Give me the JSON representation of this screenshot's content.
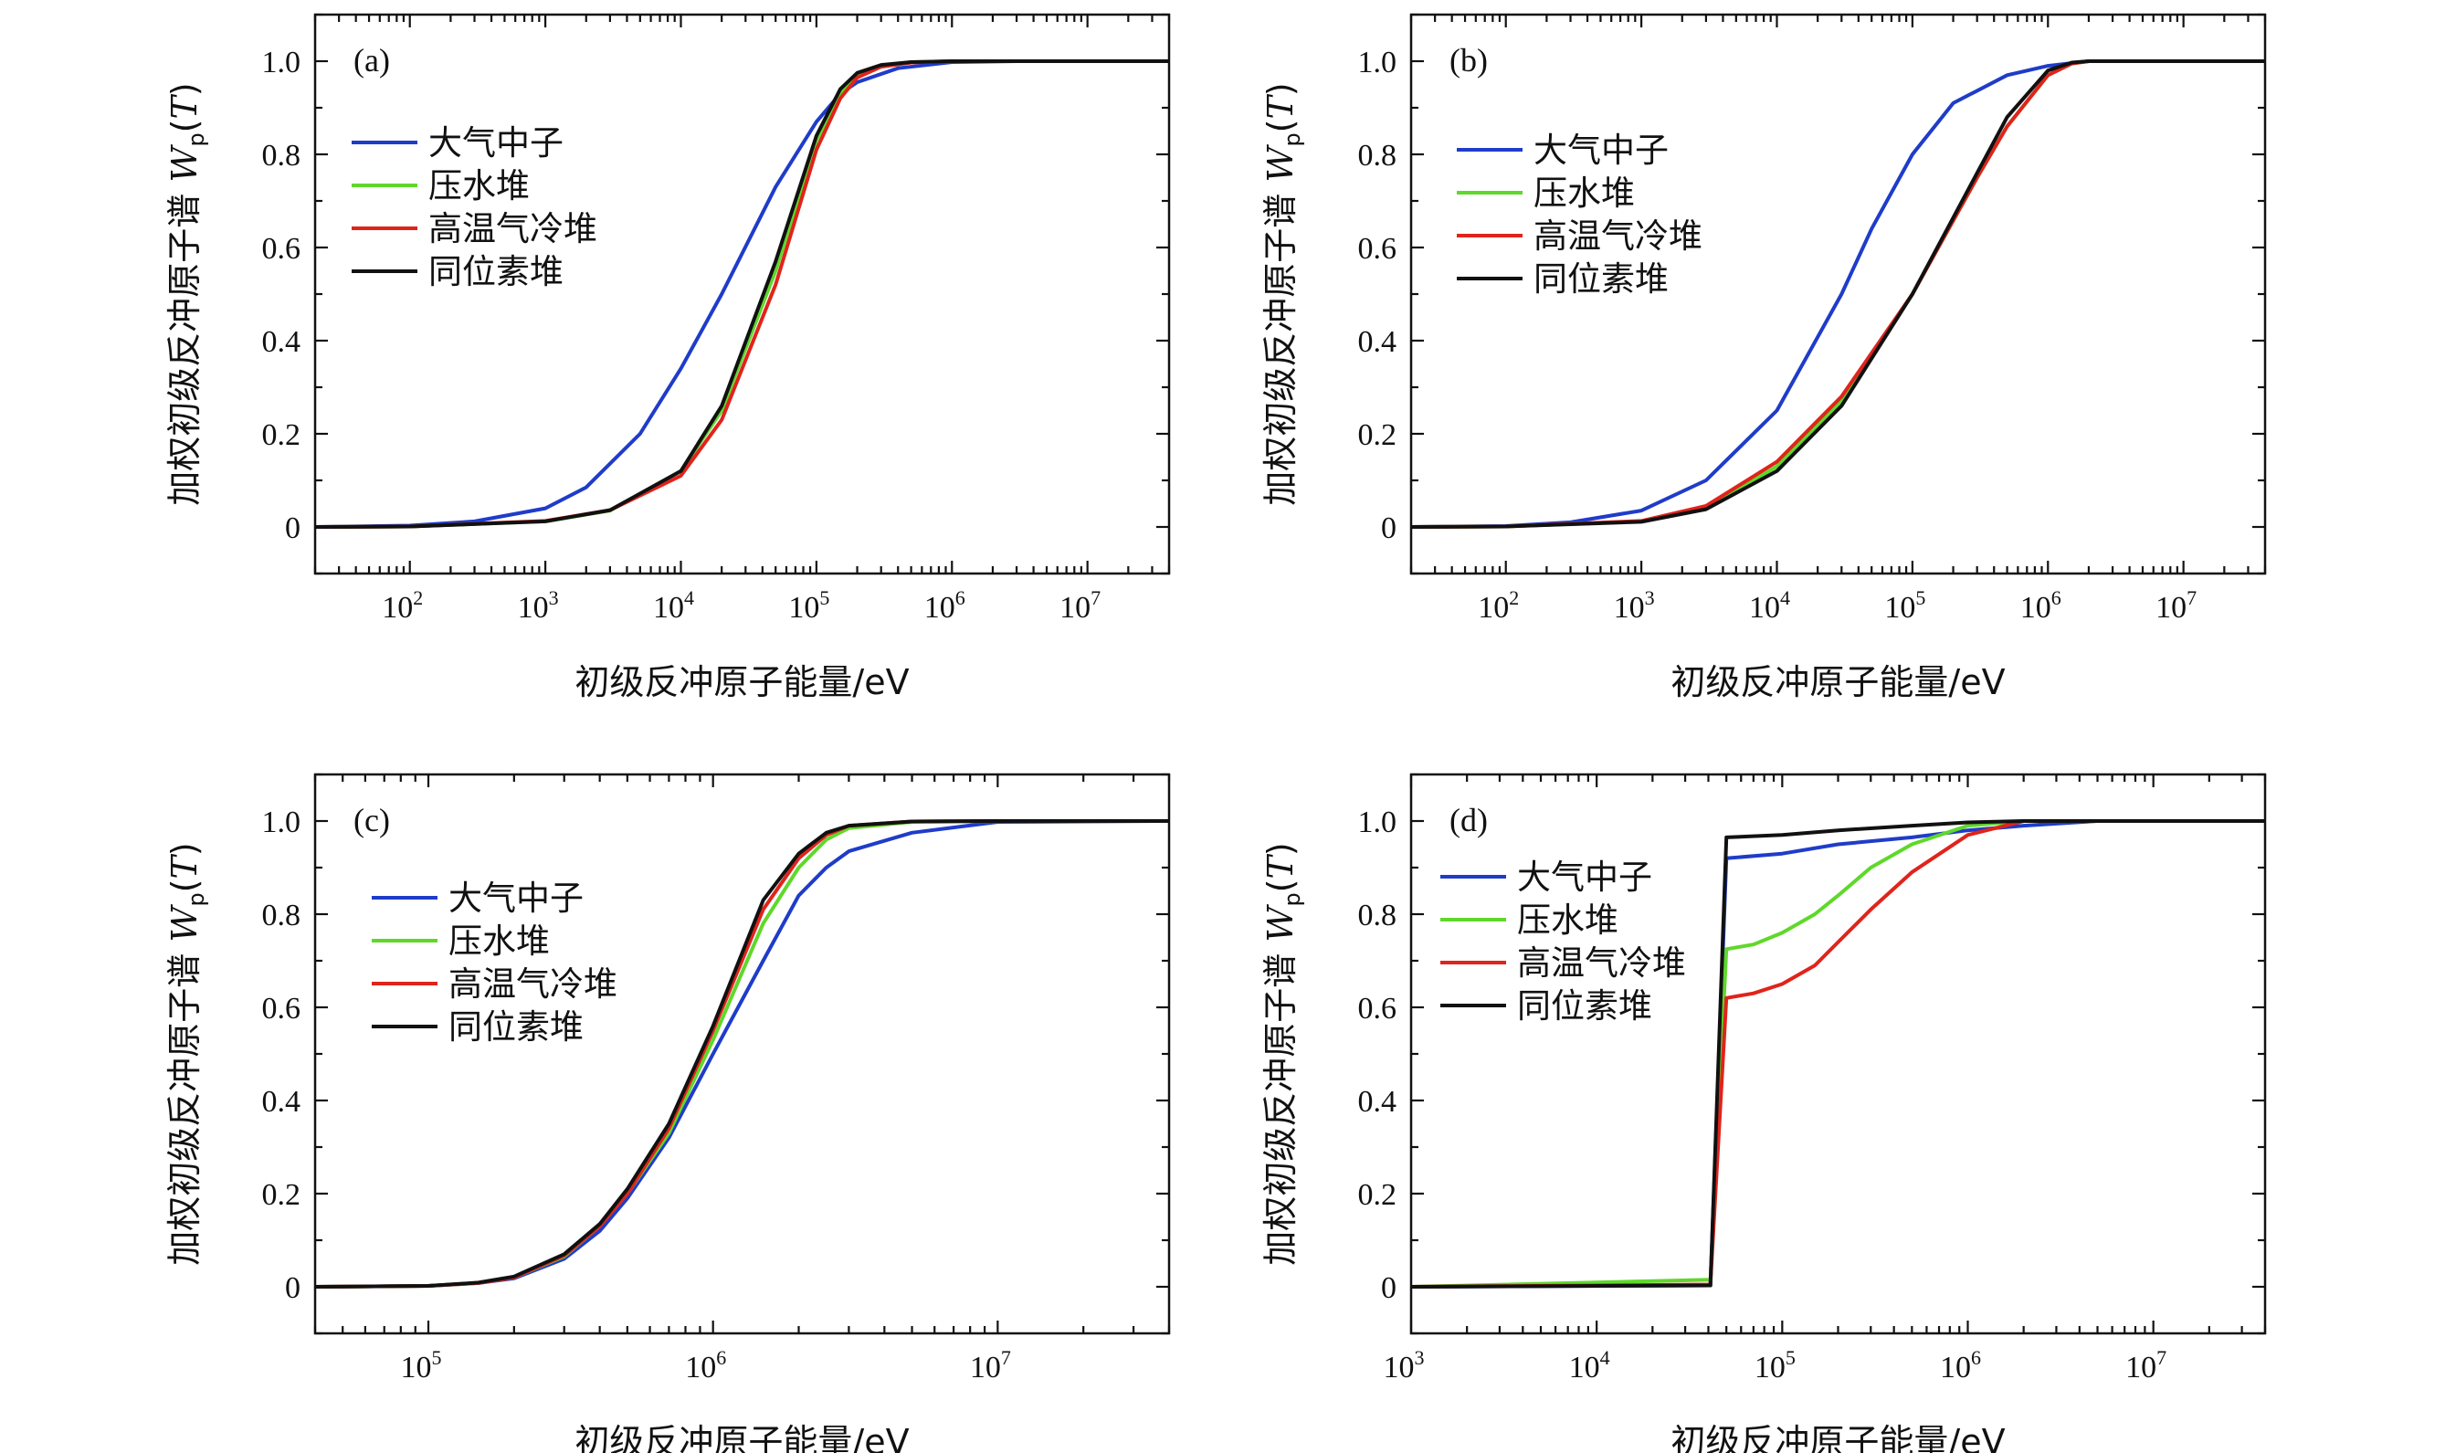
{
  "chart_data": [
    {
      "type": "line",
      "panel_label": "(a)",
      "xlabel": "初级反冲原子能量/eV",
      "ylabel": "加权初级反冲原子谱 W_p(T)",
      "xscale": "log",
      "xlim": [
        20,
        40000000
      ],
      "ylim": [
        -0.1,
        1.1
      ],
      "x_ticks": [
        100,
        1000,
        10000,
        100000,
        1000000,
        10000000
      ],
      "y_ticks": [
        0,
        0.2,
        0.4,
        0.6,
        0.8,
        1.0
      ],
      "y_tick_labels": [
        "0",
        "0.2",
        "0.4",
        "0.6",
        "0.8",
        "1.0"
      ],
      "legend_position": "upper-left",
      "series": [
        {
          "name": "大气中子",
          "color": "#1f3cc9",
          "x": [
            20,
            100,
            300,
            1000,
            2000,
            5000,
            10000,
            20000,
            50000,
            100000,
            150000,
            200000,
            400000,
            1000000,
            3000000,
            40000000
          ],
          "y": [
            0,
            0.003,
            0.012,
            0.04,
            0.085,
            0.2,
            0.34,
            0.5,
            0.73,
            0.87,
            0.93,
            0.955,
            0.985,
            0.998,
            1.0,
            1.0
          ]
        },
        {
          "name": "压水堆",
          "color": "#5fd82a",
          "x": [
            20,
            100,
            1000,
            3000,
            10000,
            20000,
            50000,
            100000,
            150000,
            200000,
            300000,
            500000,
            1000000,
            40000000
          ],
          "y": [
            0,
            0.001,
            0.012,
            0.035,
            0.12,
            0.25,
            0.55,
            0.83,
            0.93,
            0.97,
            0.99,
            0.998,
            1.0,
            1.0
          ]
        },
        {
          "name": "高温气冷堆",
          "color": "#e0241b",
          "x": [
            20,
            100,
            1000,
            3000,
            10000,
            20000,
            50000,
            100000,
            150000,
            200000,
            300000,
            500000,
            1000000,
            40000000
          ],
          "y": [
            0,
            0.001,
            0.013,
            0.036,
            0.11,
            0.23,
            0.52,
            0.81,
            0.92,
            0.965,
            0.988,
            0.997,
            1.0,
            1.0
          ]
        },
        {
          "name": "同位素堆",
          "color": "#111111",
          "x": [
            20,
            100,
            1000,
            3000,
            10000,
            20000,
            50000,
            100000,
            150000,
            200000,
            300000,
            500000,
            1000000,
            40000000
          ],
          "y": [
            0,
            0.001,
            0.012,
            0.036,
            0.12,
            0.26,
            0.57,
            0.84,
            0.94,
            0.975,
            0.992,
            0.998,
            1.0,
            1.0
          ]
        }
      ]
    },
    {
      "type": "line",
      "panel_label": "(b)",
      "xlabel": "初级反冲原子能量/eV",
      "ylabel": "加权初级反冲原子谱 W_p(T)",
      "xscale": "log",
      "xlim": [
        20,
        40000000
      ],
      "ylim": [
        -0.1,
        1.1
      ],
      "x_ticks": [
        100,
        1000,
        10000,
        100000,
        1000000,
        10000000
      ],
      "y_ticks": [
        0,
        0.2,
        0.4,
        0.6,
        0.8,
        1.0
      ],
      "y_tick_labels": [
        "0",
        "0.2",
        "0.4",
        "0.6",
        "0.8",
        "1.0"
      ],
      "legend_position": "upper-left",
      "series": [
        {
          "name": "大气中子",
          "color": "#1f3cc9",
          "x": [
            20,
            100,
            300,
            1000,
            3000,
            10000,
            30000,
            50000,
            100000,
            200000,
            500000,
            1000000,
            2000000,
            40000000
          ],
          "y": [
            0,
            0.002,
            0.01,
            0.035,
            0.1,
            0.25,
            0.5,
            0.64,
            0.8,
            0.91,
            0.97,
            0.99,
            1.0,
            1.0
          ]
        },
        {
          "name": "压水堆",
          "color": "#5fd82a",
          "x": [
            20,
            100,
            1000,
            3000,
            10000,
            30000,
            100000,
            300000,
            500000,
            1000000,
            1500000,
            2000000,
            40000000
          ],
          "y": [
            0,
            0.001,
            0.012,
            0.04,
            0.13,
            0.27,
            0.5,
            0.75,
            0.86,
            0.97,
            0.995,
            1.0,
            1.0
          ]
        },
        {
          "name": "高温气冷堆",
          "color": "#e0241b",
          "x": [
            20,
            100,
            1000,
            3000,
            10000,
            30000,
            100000,
            300000,
            500000,
            1000000,
            1500000,
            2000000,
            40000000
          ],
          "y": [
            0,
            0.001,
            0.013,
            0.045,
            0.14,
            0.28,
            0.5,
            0.75,
            0.86,
            0.97,
            0.995,
            1.0,
            1.0
          ]
        },
        {
          "name": "同位素堆",
          "color": "#111111",
          "x": [
            20,
            100,
            1000,
            3000,
            10000,
            30000,
            100000,
            300000,
            500000,
            1000000,
            1500000,
            2000000,
            40000000
          ],
          "y": [
            0,
            0.001,
            0.011,
            0.038,
            0.12,
            0.26,
            0.5,
            0.76,
            0.88,
            0.98,
            0.997,
            1.0,
            1.0
          ]
        }
      ]
    },
    {
      "type": "line",
      "panel_label": "(c)",
      "xlabel": "初级反冲原子能量/eV",
      "ylabel": "加权初级反冲原子谱 W_p(T)",
      "xscale": "log",
      "xlim": [
        40000,
        40000000
      ],
      "ylim": [
        -0.1,
        1.1
      ],
      "x_ticks": [
        100000,
        1000000,
        10000000
      ],
      "y_ticks": [
        0,
        0.2,
        0.4,
        0.6,
        0.8,
        1.0
      ],
      "y_tick_labels": [
        "0",
        "0.2",
        "0.4",
        "0.6",
        "0.8",
        "1.0"
      ],
      "legend_position": "upper-left",
      "series": [
        {
          "name": "大气中子",
          "color": "#1f3cc9",
          "x": [
            40000,
            100000,
            150000,
            200000,
            300000,
            400000,
            500000,
            700000,
            1000000,
            1500000,
            2000000,
            2500000,
            3000000,
            5000000,
            10000000,
            40000000
          ],
          "y": [
            0,
            0.002,
            0.008,
            0.018,
            0.06,
            0.12,
            0.19,
            0.32,
            0.5,
            0.7,
            0.84,
            0.9,
            0.935,
            0.975,
            0.998,
            1.0
          ]
        },
        {
          "name": "压水堆",
          "color": "#5fd82a",
          "x": [
            40000,
            100000,
            150000,
            200000,
            300000,
            400000,
            500000,
            700000,
            1000000,
            1500000,
            2000000,
            2500000,
            3000000,
            5000000,
            10000000,
            40000000
          ],
          "y": [
            0,
            0.002,
            0.008,
            0.02,
            0.065,
            0.13,
            0.2,
            0.33,
            0.53,
            0.78,
            0.9,
            0.96,
            0.985,
            0.998,
            1.0,
            1.0
          ]
        },
        {
          "name": "高温气冷堆",
          "color": "#e0241b",
          "x": [
            40000,
            100000,
            150000,
            200000,
            300000,
            400000,
            500000,
            700000,
            1000000,
            1500000,
            2000000,
            2500000,
            3000000,
            5000000,
            10000000,
            40000000
          ],
          "y": [
            0,
            0.002,
            0.008,
            0.02,
            0.067,
            0.13,
            0.2,
            0.34,
            0.55,
            0.81,
            0.92,
            0.97,
            0.99,
            0.999,
            1.0,
            1.0
          ]
        },
        {
          "name": "同位素堆",
          "color": "#111111",
          "x": [
            40000,
            100000,
            150000,
            200000,
            300000,
            400000,
            500000,
            700000,
            1000000,
            1500000,
            2000000,
            2500000,
            3000000,
            5000000,
            10000000,
            40000000
          ],
          "y": [
            0,
            0.002,
            0.009,
            0.022,
            0.07,
            0.135,
            0.21,
            0.35,
            0.56,
            0.83,
            0.93,
            0.975,
            0.99,
            0.999,
            1.0,
            1.0
          ]
        }
      ]
    },
    {
      "type": "line",
      "panel_label": "(d)",
      "xlabel": "初级反冲原子能量/eV",
      "ylabel": "加权初级反冲原子谱 W_p(T)",
      "xscale": "log",
      "xlim": [
        1000,
        40000000
      ],
      "ylim": [
        -0.1,
        1.1
      ],
      "x_ticks": [
        1000,
        10000,
        100000,
        1000000,
        10000000
      ],
      "y_ticks": [
        0,
        0.2,
        0.4,
        0.6,
        0.8,
        1.0
      ],
      "y_tick_labels": [
        "0",
        "0.2",
        "0.4",
        "0.6",
        "0.8",
        "1.0"
      ],
      "legend_position": "upper-left",
      "series": [
        {
          "name": "大气中子",
          "color": "#1f3cc9",
          "x": [
            1000,
            41000,
            50000,
            100000,
            200000,
            500000,
            1000000,
            2000000,
            5000000,
            40000000
          ],
          "y": [
            0,
            0.003,
            0.92,
            0.93,
            0.95,
            0.965,
            0.98,
            0.99,
            1.0,
            1.0
          ]
        },
        {
          "name": "压水堆",
          "color": "#5fd82a",
          "x": [
            1000,
            41000,
            50000,
            70000,
            100000,
            150000,
            200000,
            300000,
            500000,
            1000000,
            2000000,
            40000000
          ],
          "y": [
            0,
            0.015,
            0.725,
            0.735,
            0.76,
            0.8,
            0.84,
            0.9,
            0.95,
            0.99,
            1.0,
            1.0
          ]
        },
        {
          "name": "高温气冷堆",
          "color": "#e0241b",
          "x": [
            1000,
            41000,
            50000,
            70000,
            100000,
            150000,
            200000,
            300000,
            500000,
            1000000,
            2000000,
            40000000
          ],
          "y": [
            0,
            0.005,
            0.62,
            0.63,
            0.65,
            0.69,
            0.74,
            0.81,
            0.89,
            0.97,
            1.0,
            1.0
          ]
        },
        {
          "name": "同位素堆",
          "color": "#111111",
          "x": [
            1000,
            41000,
            50000,
            100000,
            200000,
            500000,
            1000000,
            2000000,
            40000000
          ],
          "y": [
            0,
            0.003,
            0.965,
            0.97,
            0.98,
            0.99,
            0.997,
            1.0,
            1.0
          ]
        }
      ]
    }
  ]
}
